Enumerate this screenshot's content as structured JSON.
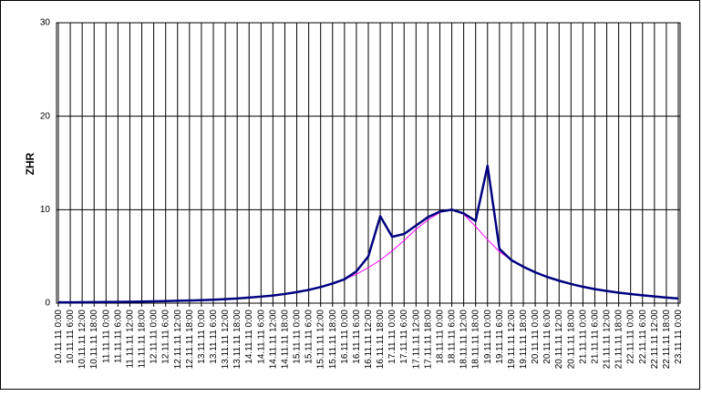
{
  "chart_data": {
    "type": "line",
    "y_label": "ZHR",
    "categories": [
      "10.11.11 0:00",
      "10.11.11 6:00",
      "10.11.11 12:00",
      "10.11.11 18:00",
      "11.11.11 0:00",
      "11.11.11 6:00",
      "11.11.11 12:00",
      "11.11.11 18:00",
      "12.11.11 0:00",
      "12.11.11 6:00",
      "12.11.11 12:00",
      "12.11.11 18:00",
      "13.11.11 0:00",
      "13.11.11 6:00",
      "13.11.11 12:00",
      "13.11.11 18:00",
      "14.11.11 0:00",
      "14.11.11 6:00",
      "14.11.11 12:00",
      "14.11.11 18:00",
      "15.11.11 0:00",
      "15.11.11 6:00",
      "15.11.11 12:00",
      "15.11.11 18:00",
      "16.11.11 0:00",
      "16.11.11 6:00",
      "16.11.11 12:00",
      "16.11.11 18:00",
      "17.11.11 0:00",
      "17.11.11 6:00",
      "17.11.11 12:00",
      "17.11.11 18:00",
      "18.11.11 0:00",
      "18.11.11 6:00",
      "18.11.11 12:00",
      "18.11.11 18:00",
      "19.11.11 0:00",
      "19.11.11 6:00",
      "19.11.11 12:00",
      "19.11.11 18:00",
      "20.11.11 0:00",
      "20.11.11 6:00",
      "20.11.11 12:00",
      "20.11.11 18:00",
      "21.11.11 0:00",
      "21.11.11 6:00",
      "21.11.11 12:00",
      "21.11.11 18:00",
      "22.11.11 0:00",
      "22.11.11 6:00",
      "22.11.11 12:00",
      "22.11.11 18:00",
      "23.11.11 0:00"
    ],
    "series": [
      {
        "color": "#ff00ff",
        "width": 1,
        "values": [
          0.08,
          0.09,
          0.1,
          0.11,
          0.12,
          0.14,
          0.15,
          0.17,
          0.19,
          0.22,
          0.25,
          0.28,
          0.32,
          0.37,
          0.43,
          0.5,
          0.6,
          0.7,
          0.82,
          0.98,
          1.18,
          1.42,
          1.72,
          2.1,
          2.55,
          3.1,
          3.8,
          4.6,
          5.6,
          6.7,
          7.9,
          8.9,
          9.7,
          10,
          9.5,
          8.2,
          6.8,
          5.5,
          4.6,
          3.9,
          3.3,
          2.8,
          2.4,
          2.05,
          1.75,
          1.5,
          1.3,
          1.12,
          0.97,
          0.84,
          0.72,
          0.6,
          0.5
        ]
      },
      {
        "color": "#000080",
        "width": 2.5,
        "values": [
          0.08,
          0.09,
          0.1,
          0.11,
          0.12,
          0.14,
          0.15,
          0.17,
          0.19,
          0.22,
          0.25,
          0.28,
          0.32,
          0.37,
          0.43,
          0.5,
          0.6,
          0.7,
          0.82,
          0.98,
          1.18,
          1.42,
          1.72,
          2.1,
          2.55,
          3.4,
          5.0,
          9.3,
          7.1,
          7.4,
          8.3,
          9.2,
          9.8,
          10,
          9.6,
          8.8,
          14.7,
          5.8,
          4.6,
          3.9,
          3.3,
          2.8,
          2.4,
          2.05,
          1.75,
          1.5,
          1.3,
          1.12,
          0.97,
          0.84,
          0.72,
          0.6,
          0.5
        ]
      }
    ],
    "ylim": [
      0,
      30
    ],
    "yticks": [
      0,
      10,
      20,
      30
    ],
    "grid": true
  }
}
